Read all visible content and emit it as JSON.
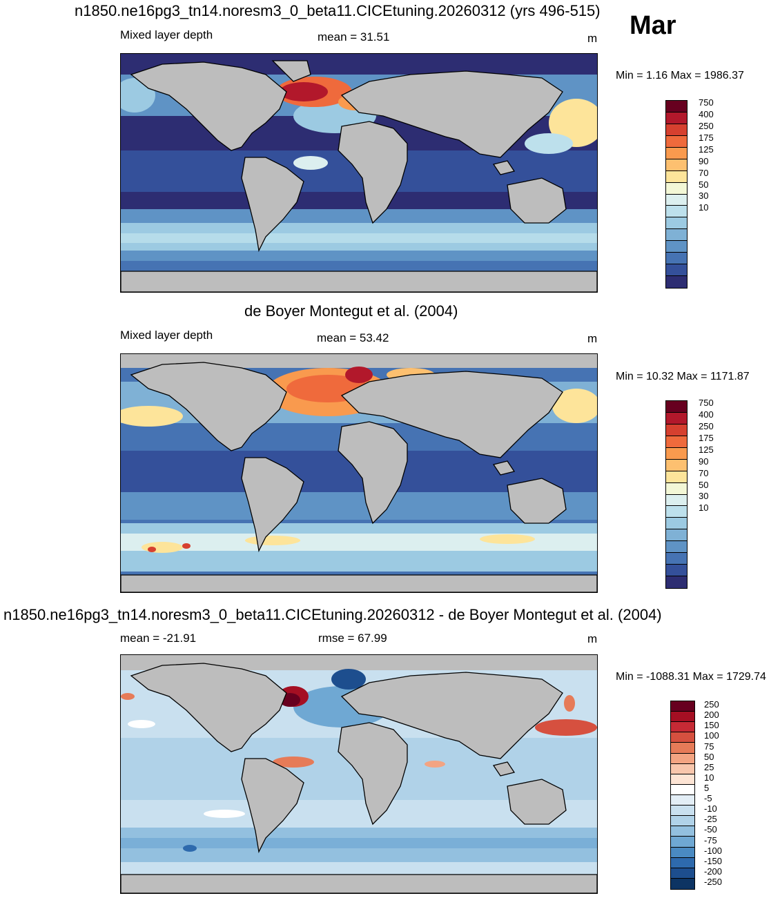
{
  "month": "Mar",
  "panels": [
    {
      "title": "n1850.ne16pg3_tn14.noresm3_0_beta11.CICEtuning.20260312 (yrs 496-515)",
      "left": "Mixed layer depth",
      "center": "mean =  31.51",
      "unit": "m",
      "minmax": "Min =   1.16 Max = 1986.37"
    },
    {
      "title": "de Boyer Montegut et al. (2004)",
      "left": "Mixed layer depth",
      "center": "mean =  53.42",
      "unit": "m",
      "minmax": "Min =  10.32 Max = 1171.87"
    },
    {
      "title": "n1850.ne16pg3_tn14.noresm3_0_beta11.CICEtuning.20260312 - de Boyer Montegut et al. (2004)",
      "left": "mean = -21.91",
      "center": "rmse =  67.99",
      "unit": "m",
      "minmax": "Min = -1088.31 Max = 1729.74"
    }
  ],
  "colorbar_mld": {
    "colors": [
      "#67001f",
      "#b2182b",
      "#d6402f",
      "#ef6a3c",
      "#f99a4e",
      "#fdc070",
      "#fde49a",
      "#f3f7d6",
      "#dcefef",
      "#bde0ec",
      "#9ccae2",
      "#7fb1d5",
      "#5f93c5",
      "#4673b3",
      "#34509a",
      "#2d2d72"
    ],
    "labels": [
      "750",
      "400",
      "250",
      "175",
      "125",
      "90",
      "70",
      "50",
      "30",
      "10"
    ]
  },
  "colorbar_diff": {
    "colors": [
      "#67001f",
      "#a50f23",
      "#c62a35",
      "#d6503f",
      "#e67b58",
      "#f3a482",
      "#f8c6ac",
      "#fde4d4",
      "#ffffff",
      "#e3eef6",
      "#c9e0ef",
      "#b0d2e8",
      "#93c0df",
      "#6fa8d3",
      "#4a8ac2",
      "#2e6aad",
      "#1d4e8e",
      "#0d3463"
    ],
    "labels": [
      "250",
      "200",
      "150",
      "100",
      "75",
      "50",
      "25",
      "10",
      "5",
      "-5",
      "-10",
      "-25",
      "-50",
      "-75",
      "-100",
      "-150",
      "-200",
      "-250"
    ]
  }
}
